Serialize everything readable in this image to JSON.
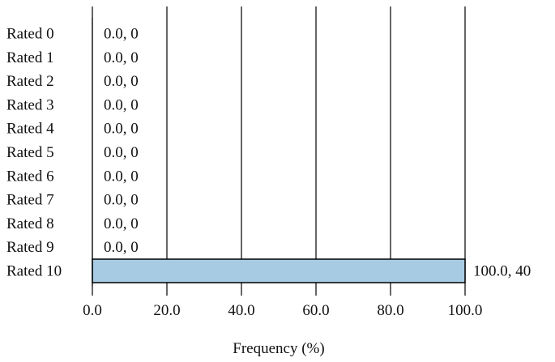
{
  "chart_data": {
    "type": "bar",
    "orientation": "horizontal",
    "title": "",
    "xlabel": "Frequency (%)",
    "ylabel": "",
    "xlim": [
      0,
      100
    ],
    "xticks": [
      "0.0",
      "20.0",
      "40.0",
      "60.0",
      "80.0",
      "100.0"
    ],
    "grid": true,
    "categories": [
      "Rated 0",
      "Rated 1",
      "Rated 2",
      "Rated 3",
      "Rated 4",
      "Rated 5",
      "Rated 6",
      "Rated 7",
      "Rated 8",
      "Rated 9",
      "Rated 10"
    ],
    "series": [
      {
        "values": [
          0.0,
          0.0,
          0.0,
          0.0,
          0.0,
          0.0,
          0.0,
          0.0,
          0.0,
          0.0,
          100.0
        ],
        "counts": [
          0,
          0,
          0,
          0,
          0,
          0,
          0,
          0,
          0,
          0,
          40
        ]
      }
    ],
    "data_labels": [
      "0.0, 0",
      "0.0, 0",
      "0.0, 0",
      "0.0, 0",
      "0.0, 0",
      "0.0, 0",
      "0.0, 0",
      "0.0, 0",
      "0.0, 0",
      "0.0, 0",
      "100.0, 40"
    ],
    "colors": {
      "bar": "#a6cbe3",
      "bar_stroke": "#000000",
      "grid": "#000000",
      "text": "#111111"
    }
  }
}
